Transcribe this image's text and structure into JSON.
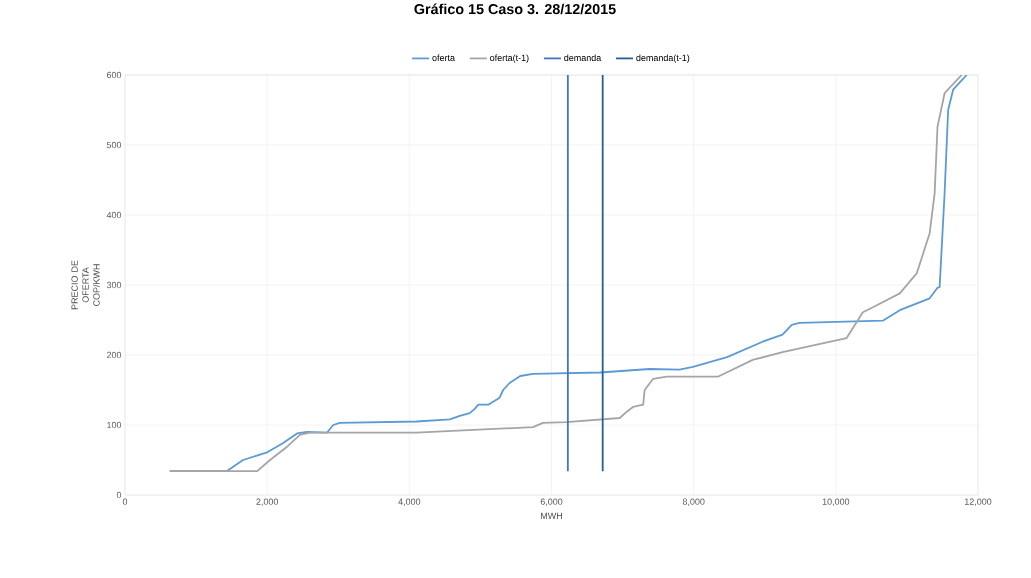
{
  "chart_data": {
    "type": "line",
    "title": "Gráfico 15 Caso 3. 28/12/2015",
    "xlabel": "MWH",
    "ylabel": "PRECIO DE OFERTA COP/KWH",
    "xlim": [
      0,
      12000
    ],
    "ylim": [
      0,
      600
    ],
    "xticks": [
      0,
      {
        "value": 2000,
        "label": "2,000"
      },
      {
        "value": 4000,
        "label": "4,000"
      },
      {
        "value": 6000,
        "label": "6,000"
      },
      {
        "value": 8000,
        "label": "8,000"
      },
      {
        "value": 10000,
        "label": "10,000"
      },
      {
        "value": 12000,
        "label": "12,000"
      }
    ],
    "yticks": [
      0,
      100,
      200,
      300,
      400,
      500,
      600
    ],
    "grid": true,
    "legend": "top",
    "marker": "none",
    "line_style": "solid",
    "series": [
      {
        "name": "oferta",
        "color": "#5b9bd5",
        "x": [
          630,
          1430,
          1660,
          2000,
          2220,
          2420,
          2560,
          2840,
          2930,
          3020,
          4100,
          4570,
          4710,
          4850,
          4920,
          4970,
          5110,
          5270,
          5320,
          5410,
          5560,
          5740,
          6680,
          7380,
          7800,
          7990,
          8470,
          8970,
          9250,
          9380,
          9490,
          10660,
          10900,
          11320,
          11430,
          11460,
          11530,
          11580,
          11650,
          11840
        ],
        "values": [
          34,
          34,
          50,
          61,
          74,
          88,
          90,
          89,
          100,
          103,
          105,
          108,
          113,
          117,
          123,
          129,
          129,
          139,
          150,
          160,
          170,
          173,
          175,
          180,
          179,
          183,
          197,
          219,
          229,
          243,
          246,
          249,
          264,
          281,
          296,
          297,
          431,
          550,
          579,
          600
        ]
      },
      {
        "name": "oferta(t-1)",
        "color": "#a5a5a5",
        "x": [
          630,
          1860,
          2040,
          2280,
          2460,
          2600,
          4100,
          5740,
          5880,
          6210,
          6960,
          7060,
          7150,
          7290,
          7310,
          7430,
          7620,
          8340,
          8830,
          9250,
          10150,
          10380,
          10480,
          10900,
          11140,
          11320,
          11390,
          11430,
          11530,
          11770
        ],
        "values": [
          34,
          34,
          50,
          69,
          86,
          89,
          89,
          97,
          103,
          104,
          110,
          119,
          126,
          129,
          150,
          166,
          169,
          169,
          193,
          204,
          224,
          261,
          266,
          288,
          317,
          374,
          431,
          526,
          574,
          600
        ]
      },
      {
        "name": "demanda",
        "color": "#4472c4",
        "x": [
          6230,
          6230
        ],
        "values": [
          34,
          600
        ]
      },
      {
        "name": "demanda(t-1)",
        "color": "#255e91",
        "x": [
          6720,
          6720
        ],
        "values": [
          34,
          600
        ]
      }
    ]
  }
}
